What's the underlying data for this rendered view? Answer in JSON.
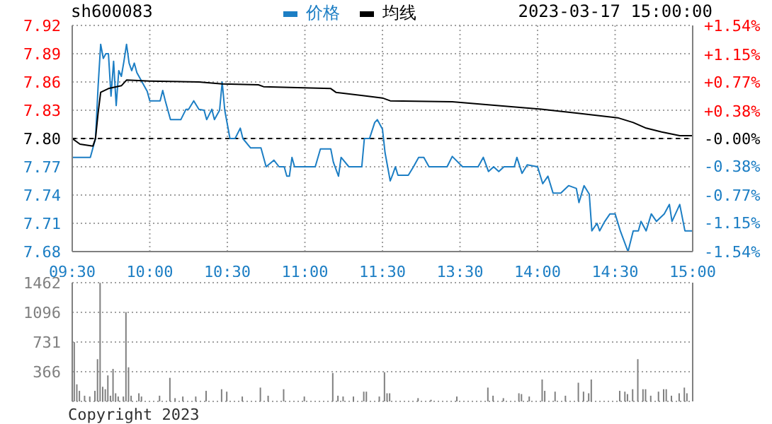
{
  "chart_data": [
    {
      "type": "line",
      "title": "sh600083",
      "annotations": [
        "2023-03-17 15:00:00"
      ],
      "legend": "top",
      "grid": true,
      "categories": [
        "09:30",
        null,
        null,
        null,
        null,
        null,
        null,
        null,
        null,
        null,
        null,
        null,
        null,
        null,
        null,
        null,
        null,
        null,
        null,
        null,
        null,
        null,
        null,
        null,
        null,
        null,
        null,
        null,
        null,
        null,
        "10:00",
        null,
        null,
        null,
        null,
        null,
        null,
        null,
        null,
        null,
        null,
        null,
        null,
        null,
        null,
        null,
        null,
        null,
        null,
        null,
        null,
        null,
        null,
        null,
        null,
        null,
        null,
        null,
        null,
        null,
        "10:30",
        null,
        null,
        null,
        null,
        null,
        null,
        null,
        null,
        null,
        null,
        null,
        null,
        null,
        null,
        null,
        null,
        null,
        null,
        null,
        null,
        null,
        null,
        null,
        null,
        null,
        null,
        null,
        null,
        null,
        "11:00",
        null,
        null,
        null,
        null,
        null,
        null,
        null,
        null,
        null,
        null,
        null,
        null,
        null,
        null,
        null,
        null,
        null,
        null,
        null,
        null,
        null,
        null,
        null,
        null,
        null,
        null,
        null,
        null,
        null,
        "11:30",
        null,
        null,
        null,
        null,
        null,
        null,
        null,
        null,
        null,
        null,
        null,
        null,
        null,
        null,
        null,
        null,
        null,
        null,
        null,
        null,
        null,
        null,
        null,
        null,
        null,
        null,
        null,
        null,
        null,
        "13:30",
        null,
        null,
        null,
        null,
        null,
        null,
        null,
        null,
        null,
        null,
        null,
        null,
        null,
        null,
        null,
        null,
        null,
        null,
        null,
        null,
        null,
        null,
        null,
        null,
        null,
        null,
        null,
        null,
        null,
        "14:00",
        null,
        null,
        null,
        null,
        null,
        null,
        null,
        null,
        null,
        null,
        null,
        null,
        null,
        null,
        null,
        null,
        null,
        null,
        null,
        null,
        null,
        null,
        null,
        null,
        null,
        null,
        null,
        null,
        null,
        "14:30",
        null,
        null,
        null,
        null,
        null,
        null,
        null,
        null,
        null,
        null,
        null,
        null,
        null,
        null,
        null,
        null,
        null,
        null,
        null,
        null,
        null,
        null,
        null,
        null,
        null,
        null,
        null,
        null,
        null,
        "15:00"
      ],
      "ylim": [
        7.68,
        7.92
      ],
      "yticks": [
        7.68,
        7.71,
        7.74,
        7.77,
        {
          "value": 7.8,
          "label": "7.80"
        },
        7.83,
        7.86,
        7.89,
        7.92
      ],
      "y2lim": [
        -1.54,
        1.54
      ],
      "y2ticks": [
        {
          "value": -1.54,
          "label": "-1.54%"
        },
        {
          "value": -1.15,
          "label": "-1.15%"
        },
        {
          "value": -0.77,
          "label": "-0.77%"
        },
        {
          "value": -0.38,
          "label": "-0.38%"
        },
        {
          "value": 0,
          "label": "-0.00%"
        },
        {
          "value": 0.38,
          "label": "+0.38%"
        },
        {
          "value": 0.77,
          "label": "+0.77%"
        },
        {
          "value": 1.15,
          "label": "+1.15%"
        },
        {
          "value": 1.54,
          "label": "+1.54%"
        }
      ],
      "ref_lines": [
        {
          "axis": "y",
          "value": 7.8,
          "color": "#000000",
          "line_style": "dashed"
        }
      ],
      "series": [
        {
          "name": "价格",
          "color": "#1c7ec4",
          "values": [
            7.78,
            null,
            null,
            null,
            null,
            null,
            null,
            7.78,
            null,
            7.8,
            7.855,
            7.9,
            7.885,
            7.89,
            7.89,
            7.845,
            7.882,
            7.835,
            7.872,
            7.866,
            7.882,
            7.9,
            7.88,
            7.872,
            7.88,
            7.87,
            null,
            7.86,
            null,
            7.85,
            7.84,
            null,
            null,
            null,
            7.84,
            7.851,
            7.84,
            null,
            7.82,
            null,
            null,
            null,
            7.82,
            null,
            7.831,
            7.831,
            null,
            7.84,
            null,
            7.831,
            null,
            7.83,
            7.82,
            null,
            7.831,
            7.82,
            null,
            7.83,
            7.86,
            7.83,
            null,
            7.8,
            null,
            7.8,
            null,
            7.811,
            7.8,
            null,
            null,
            7.79,
            null,
            null,
            null,
            7.79,
            null,
            7.77,
            null,
            null,
            7.777,
            null,
            7.77,
            null,
            7.77,
            7.76,
            7.76,
            7.78,
            7.77,
            null,
            null,
            null,
            null,
            null,
            null,
            null,
            7.77,
            null,
            7.789,
            null,
            null,
            null,
            7.789,
            7.775,
            null,
            7.76,
            7.78,
            null,
            null,
            7.77,
            null,
            null,
            null,
            null,
            7.77,
            7.8,
            null,
            7.8,
            null,
            7.817,
            7.82,
            null,
            7.81,
            7.785,
            null,
            7.755,
            7.762,
            7.77,
            7.761,
            null,
            null,
            null,
            7.761,
            null,
            7.77,
            null,
            7.78,
            null,
            7.78,
            null,
            7.77,
            null,
            null,
            null,
            null,
            null,
            null,
            7.77,
            null,
            7.781,
            null,
            null,
            null,
            7.77,
            null,
            null,
            null,
            null,
            null,
            7.77,
            null,
            7.78,
            null,
            7.765,
            null,
            7.77,
            null,
            7.765,
            null,
            7.77,
            null,
            null,
            null,
            7.77,
            7.78,
            null,
            7.763,
            null,
            7.772,
            null,
            null,
            null,
            7.77,
            null,
            7.752,
            null,
            7.76,
            null,
            7.742,
            null,
            null,
            7.742,
            null,
            null,
            7.75,
            null,
            null,
            7.747,
            7.732,
            null,
            7.75,
            null,
            7.741,
            7.702,
            null,
            7.71,
            7.702,
            null,
            7.712,
            null,
            7.72,
            null,
            7.72,
            null,
            7.702,
            null,
            null,
            7.68,
            null,
            7.702,
            null,
            7.702,
            7.712,
            null,
            7.702,
            null,
            7.72,
            null,
            7.712,
            null,
            null,
            7.72,
            null,
            7.73,
            7.712,
            null,
            null,
            7.73,
            null,
            7.702,
            null,
            null,
            7.702
          ]
        },
        {
          "name": "均线",
          "color": "#000000",
          "values": [
            7.8,
            null,
            null,
            7.794,
            null,
            null,
            null,
            null,
            7.792,
            7.8,
            7.827,
            7.849,
            null,
            null,
            7.853,
            null,
            null,
            null,
            null,
            7.856,
            null,
            7.862,
            null,
            null,
            null,
            null,
            null,
            null,
            null,
            null,
            7.861,
            null,
            null,
            null,
            null,
            null,
            null,
            null,
            null,
            null,
            null,
            null,
            null,
            null,
            null,
            null,
            null,
            null,
            null,
            7.86,
            null,
            null,
            null,
            null,
            null,
            null,
            null,
            null,
            7.858,
            null,
            null,
            null,
            null,
            null,
            null,
            null,
            null,
            null,
            null,
            null,
            null,
            null,
            7.857,
            null,
            7.855,
            null,
            null,
            null,
            null,
            null,
            null,
            null,
            null,
            null,
            null,
            null,
            null,
            null,
            null,
            null,
            null,
            null,
            null,
            null,
            null,
            null,
            null,
            null,
            null,
            null,
            7.853,
            null,
            7.849,
            null,
            null,
            null,
            null,
            null,
            null,
            null,
            null,
            null,
            null,
            null,
            7.845,
            null,
            null,
            null,
            null,
            null,
            7.843,
            null,
            null,
            7.84,
            null,
            null,
            null,
            null,
            null,
            null,
            null,
            null,
            null,
            null,
            null,
            null,
            null,
            null,
            null,
            null,
            null,
            null,
            null,
            null,
            null,
            null,
            null,
            7.839,
            null,
            null,
            null,
            null,
            null,
            null,
            null,
            null,
            null,
            null,
            null,
            null,
            7.836,
            null,
            null,
            null,
            null,
            null,
            null,
            null,
            null,
            null,
            null,
            null,
            null,
            null,
            null,
            null,
            null,
            null,
            null,
            null,
            null,
            null,
            7.831,
            null,
            null,
            null,
            null,
            null,
            null,
            null,
            null,
            null,
            null,
            null,
            null,
            7.827,
            null,
            null,
            null,
            null,
            null,
            null,
            null,
            null,
            null,
            null,
            null,
            null,
            null,
            null,
            null,
            7.822,
            null,
            null,
            null,
            null,
            null,
            7.817,
            null,
            null,
            null,
            null,
            7.811,
            null,
            null,
            null,
            null,
            null,
            7.807,
            null,
            null,
            null,
            null,
            null,
            null,
            7.803,
            null,
            null,
            null,
            null,
            7.803
          ]
        }
      ]
    },
    {
      "type": "bar",
      "color": "#808080",
      "grid": true,
      "tick_labels": "y",
      "annotations": [
        "Copyright 2023"
      ],
      "categories": [
        null,
        null,
        null,
        null,
        null,
        null,
        null,
        null,
        null,
        null,
        null,
        null,
        null,
        null,
        null,
        null,
        null,
        null,
        null,
        null,
        null,
        null,
        null,
        null,
        null,
        null,
        null,
        null,
        null,
        null,
        null,
        null,
        null,
        null,
        null,
        null,
        null,
        null,
        null,
        null,
        null,
        null,
        null,
        null,
        null,
        null,
        null,
        null,
        null,
        null,
        null,
        null,
        null,
        null,
        null,
        null,
        null,
        null,
        null,
        null,
        null,
        null,
        null,
        null,
        null,
        null,
        null,
        null,
        null,
        null,
        null,
        null,
        null,
        null,
        null,
        null,
        null,
        null,
        null,
        null,
        null,
        null,
        null,
        null,
        null,
        null,
        null,
        null,
        null,
        null,
        null,
        null,
        null,
        null,
        null,
        null,
        null,
        null,
        null,
        null,
        null,
        null,
        null,
        null,
        null,
        null,
        null,
        null,
        null,
        null,
        null,
        null,
        null,
        null,
        null,
        null,
        null,
        null,
        null,
        null,
        null,
        null,
        null,
        null,
        null,
        null,
        null,
        null,
        null,
        null,
        null,
        null,
        null,
        null,
        null,
        null,
        null,
        null,
        null,
        null,
        null,
        null,
        null,
        null,
        null,
        null,
        null,
        null,
        null,
        null,
        null,
        null,
        null,
        null,
        null,
        null,
        null,
        null,
        null,
        null,
        null,
        null,
        null,
        null,
        null,
        null,
        null,
        null,
        null,
        null,
        null,
        null,
        null,
        null,
        null,
        null,
        null,
        null,
        null,
        null,
        null,
        null,
        null,
        null,
        null,
        null,
        null,
        null,
        null,
        null,
        null,
        null,
        null,
        null,
        null,
        null,
        null,
        null,
        null,
        null,
        null,
        null,
        null,
        null,
        null,
        null,
        null,
        null,
        null,
        null,
        null,
        null,
        null,
        null,
        null,
        null,
        null,
        null,
        null,
        null,
        null,
        null,
        null,
        null,
        null,
        null,
        null,
        null,
        null,
        null,
        null,
        null,
        null,
        null,
        null,
        null,
        null,
        null,
        null,
        null,
        null
      ],
      "ylim": [
        0,
        1462
      ],
      "yticks": [
        366,
        731,
        1096,
        1462
      ],
      "values": [
        null,
        730,
        210,
        130,
        null,
        70,
        null,
        60,
        null,
        130,
        520,
        1460,
        180,
        150,
        320,
        70,
        400,
        100,
        60,
        null,
        60,
        1100,
        420,
        70,
        null,
        null,
        100,
        60,
        null,
        null,
        null,
        null,
        null,
        null,
        70,
        null,
        null,
        null,
        290,
        null,
        40,
        null,
        null,
        60,
        null,
        null,
        null,
        null,
        60,
        null,
        null,
        null,
        130,
        null,
        null,
        null,
        null,
        null,
        150,
        null,
        120,
        null,
        null,
        null,
        null,
        null,
        60,
        null,
        null,
        null,
        null,
        null,
        null,
        170,
        null,
        null,
        70,
        null,
        null,
        null,
        null,
        null,
        150,
        null,
        null,
        null,
        null,
        null,
        null,
        null,
        60,
        null,
        null,
        null,
        null,
        null,
        null,
        null,
        null,
        null,
        null,
        350,
        null,
        70,
        null,
        60,
        null,
        null,
        null,
        60,
        null,
        null,
        null,
        120,
        120,
        null,
        null,
        null,
        null,
        60,
        null,
        360,
        100,
        100,
        null,
        null,
        null,
        null,
        null,
        null,
        null,
        null,
        null,
        null,
        40,
        null,
        null,
        null,
        null,
        20,
        null,
        null,
        null,
        null,
        null,
        null,
        null,
        null,
        null,
        60,
        null,
        null,
        null,
        null,
        null,
        null,
        null,
        null,
        null,
        null,
        null,
        170,
        null,
        70,
        null,
        null,
        null,
        40,
        null,
        null,
        null,
        null,
        null,
        100,
        90,
        null,
        null,
        60,
        null,
        null,
        null,
        null,
        270,
        130,
        null,
        null,
        null,
        120,
        null,
        null,
        null,
        70,
        null,
        null,
        null,
        null,
        230,
        null,
        120,
        null,
        100,
        270,
        null,
        null,
        null,
        null,
        null,
        null,
        null,
        null,
        null,
        null,
        130,
        null,
        120,
        90,
        null,
        150,
        null,
        520,
        null,
        150,
        150,
        null,
        70,
        null,
        null,
        120,
        null,
        150,
        150,
        null,
        70,
        null,
        null,
        100,
        null,
        170,
        100,
        null,
        null
      ]
    }
  ]
}
